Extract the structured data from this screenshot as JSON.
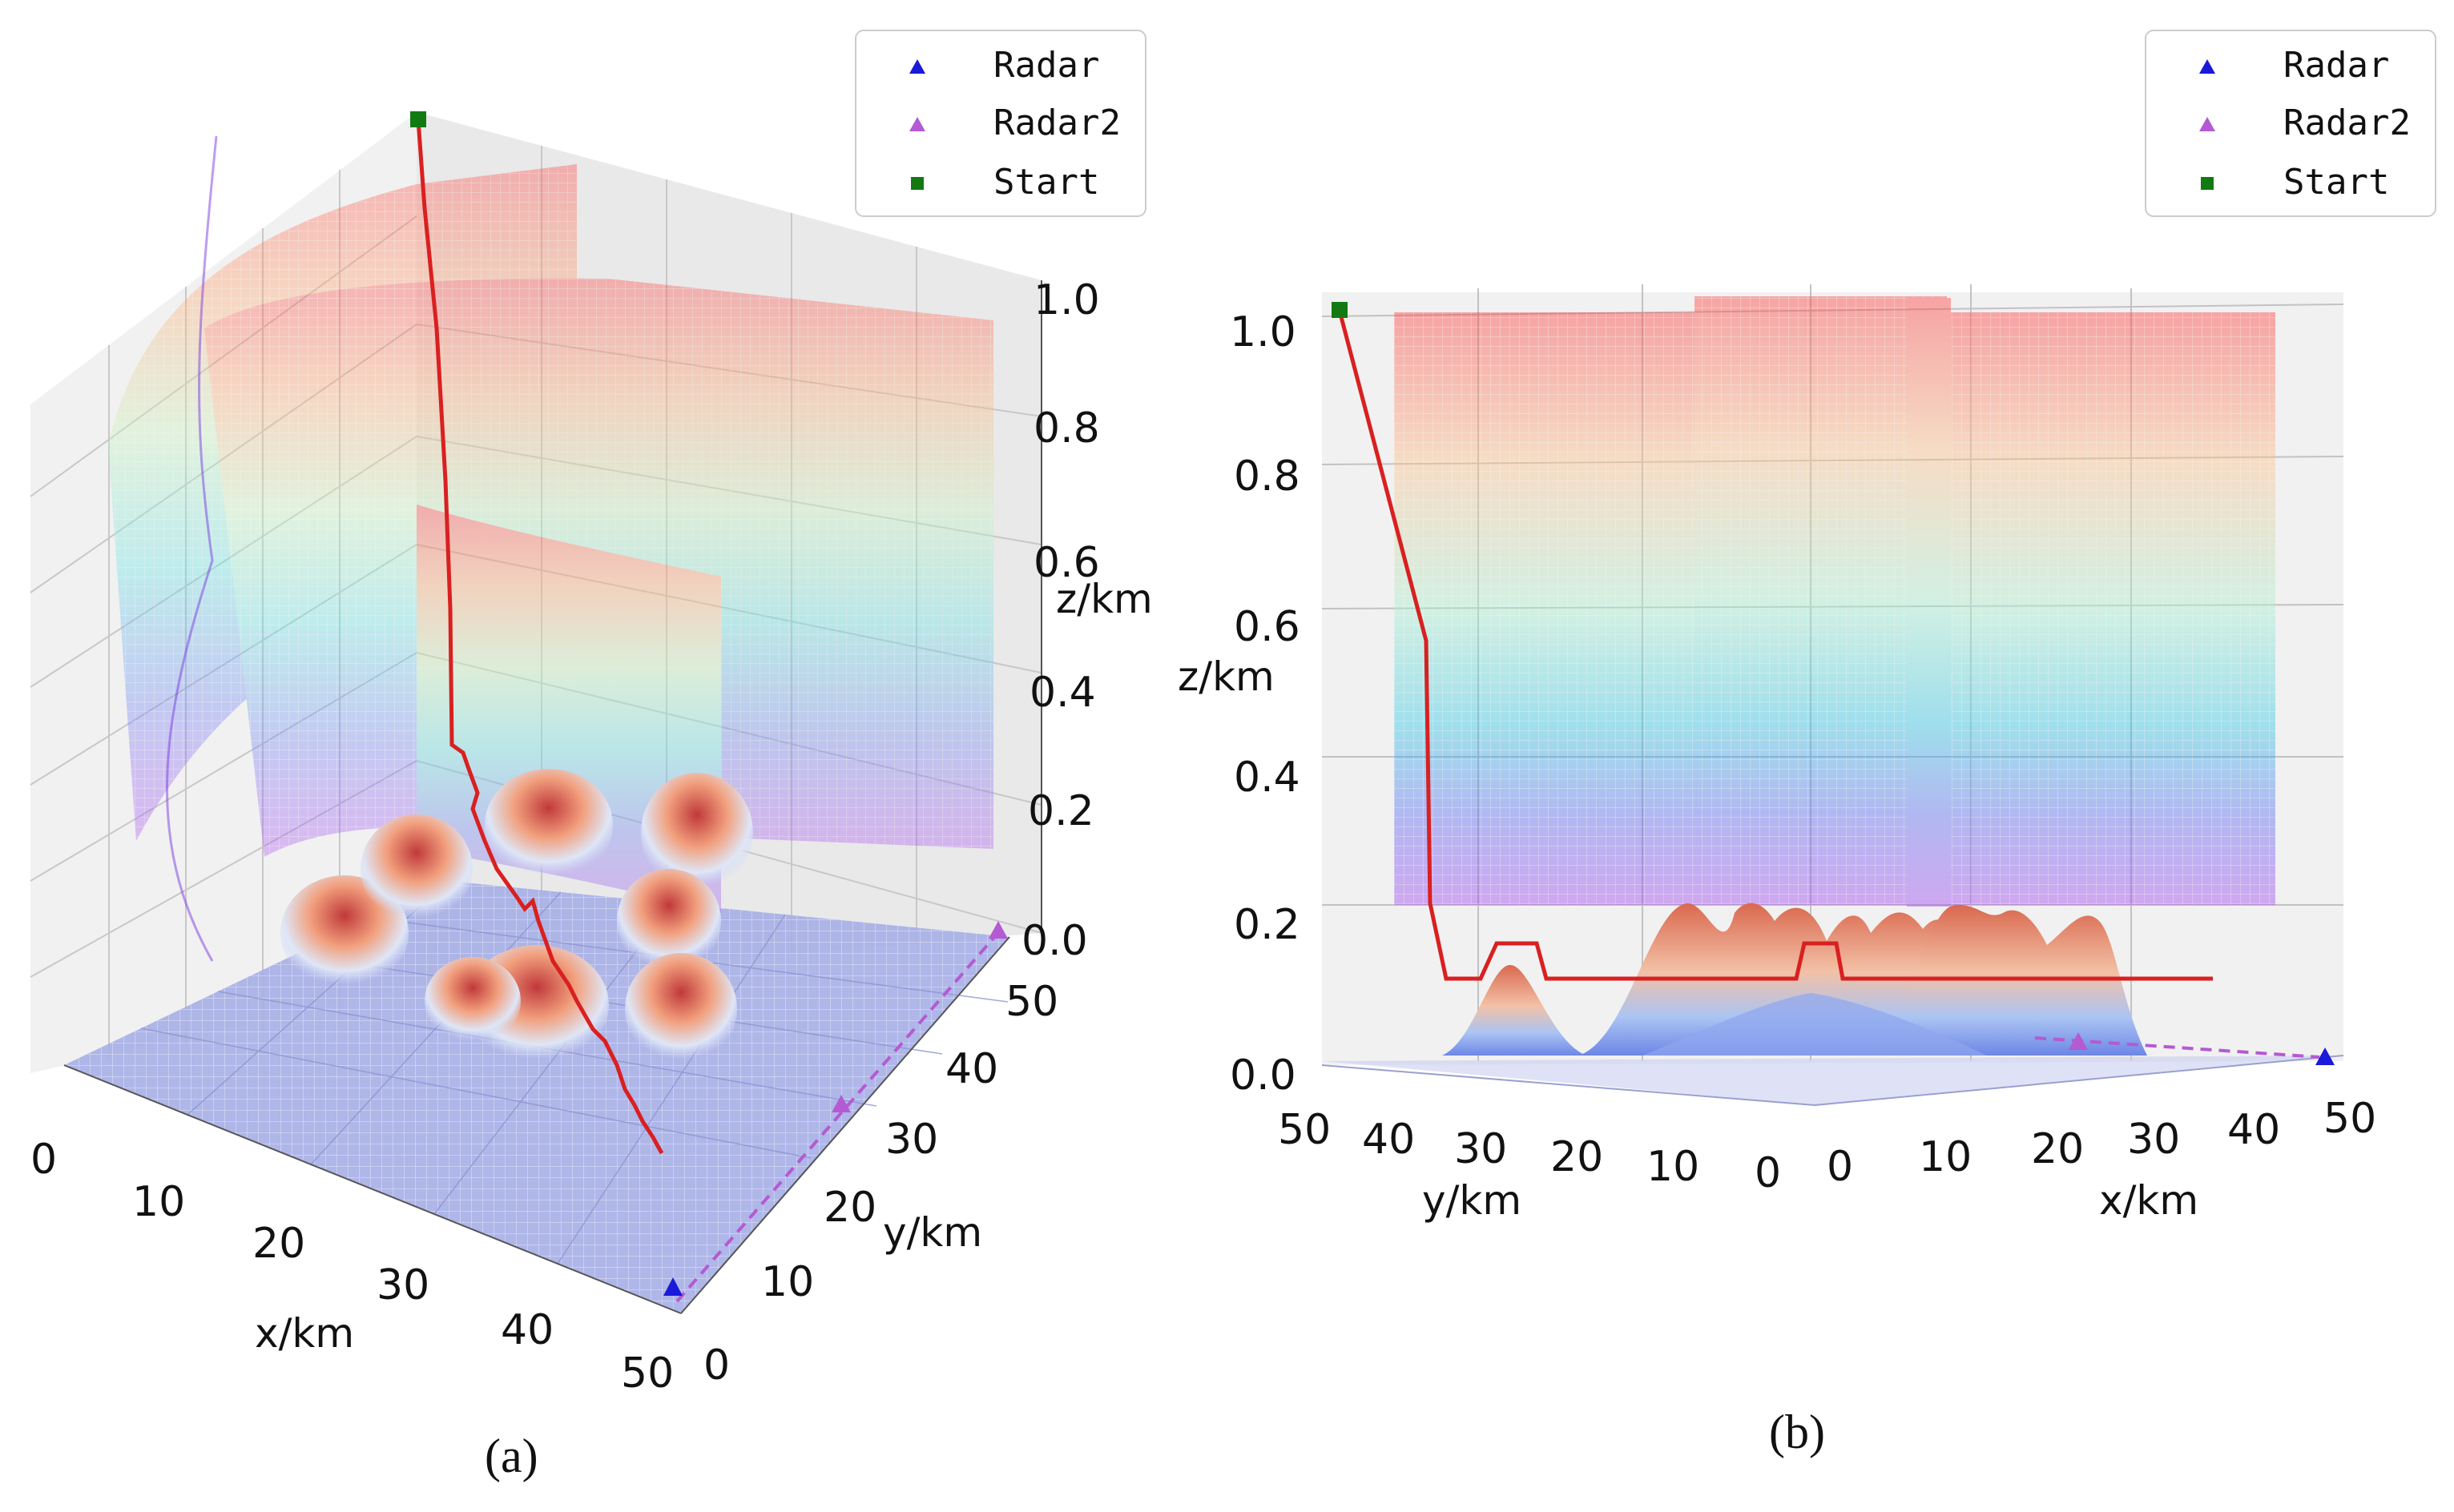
{
  "figure": {
    "panels": [
      {
        "caption": "(a)"
      },
      {
        "caption": "(b)"
      }
    ]
  },
  "legend": {
    "entries": [
      {
        "label": "Radar",
        "marker": "triangle",
        "color": "#1a1adb"
      },
      {
        "label": "Radar2",
        "marker": "triangle",
        "color": "#b45ad2"
      },
      {
        "label": "Start",
        "marker": "square",
        "color": "#137a13"
      }
    ]
  },
  "chart_data": [
    {
      "type": "surface3d",
      "view": "perspective",
      "caption": "(a)",
      "xlabel": "x/km",
      "ylabel": "y/km",
      "zlabel": "z/km",
      "xlim": [
        0,
        50
      ],
      "ylim": [
        0,
        50
      ],
      "zlim": [
        0,
        1.0
      ],
      "xticks": [
        "0",
        "10",
        "20",
        "30",
        "40",
        "50"
      ],
      "yticks": [
        "0",
        "10",
        "20",
        "30",
        "40",
        "50"
      ],
      "zticks": [
        "0.0",
        "0.2",
        "0.4",
        "0.6",
        "0.8",
        "1.0"
      ],
      "series": [
        {
          "name": "Radar",
          "marker": "triangle",
          "color": "#1a1adb"
        },
        {
          "name": "Radar2",
          "marker": "triangle",
          "color": "#b45ad2"
        },
        {
          "name": "Start",
          "marker": "square",
          "color": "#137a13"
        },
        {
          "name": "path",
          "color": "#d92020"
        }
      ]
    },
    {
      "type": "surface3d",
      "view": "side",
      "caption": "(b)",
      "xlabel": "x/km",
      "ylabel": "y/km",
      "zlabel": "z/km",
      "xlim": [
        0,
        50
      ],
      "ylim": [
        0,
        50
      ],
      "zlim": [
        0,
        1.0
      ],
      "xticks": [
        "0",
        "10",
        "20",
        "30",
        "40",
        "50"
      ],
      "yticks": [
        "50",
        "40",
        "30",
        "20",
        "10",
        "0"
      ],
      "zticks": [
        "0.0",
        "0.2",
        "0.4",
        "0.6",
        "0.8",
        "1.0"
      ],
      "series": [
        {
          "name": "Radar",
          "marker": "triangle",
          "color": "#1a1adb"
        },
        {
          "name": "Radar2",
          "marker": "triangle",
          "color": "#b45ad2"
        },
        {
          "name": "Start",
          "marker": "square",
          "color": "#137a13"
        },
        {
          "name": "path",
          "color": "#d92020"
        }
      ]
    }
  ]
}
